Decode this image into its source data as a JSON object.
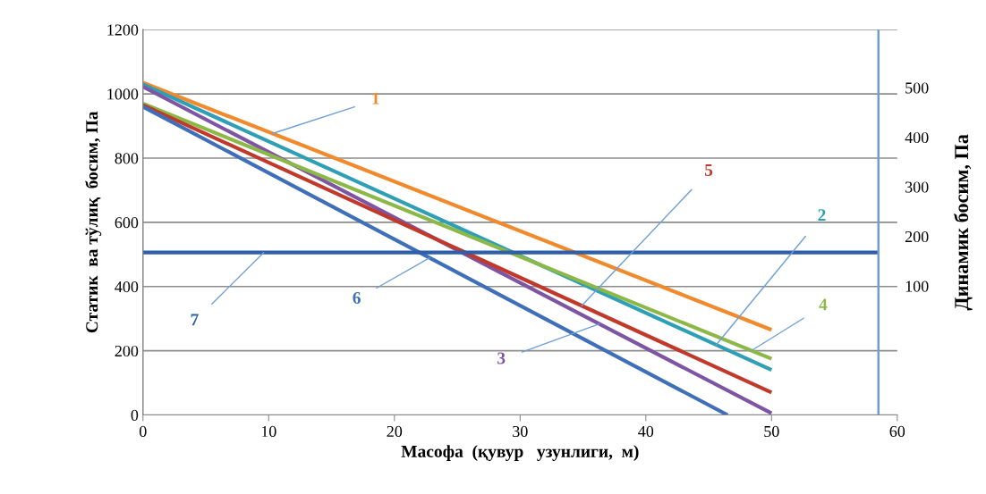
{
  "chart_data": {
    "type": "line",
    "xlabel": "Масофа  (қувур   узунлиги,  м)",
    "ylabel": "Статик  ва тўлиқ  босим, Па",
    "y2label": "Динамик босим, Па",
    "xlim": [
      0,
      60
    ],
    "xticks": [
      0,
      10,
      20,
      30,
      40,
      50,
      60
    ],
    "ylim": [
      0,
      1200
    ],
    "yticks": [
      0,
      200,
      400,
      600,
      800,
      1000,
      1200
    ],
    "y2lim": [
      -160,
      617
    ],
    "y2ticks": [
      100,
      200,
      300,
      400,
      500
    ],
    "grid": "y",
    "legend": false,
    "series": [
      {
        "name": "1",
        "color": "#f08a2c",
        "x": [
          0,
          50
        ],
        "values": [
          1035,
          265
        ]
      },
      {
        "name": "2",
        "color": "#2e9fb5",
        "x": [
          0,
          50
        ],
        "values": [
          1030,
          140
        ]
      },
      {
        "name": "3",
        "color": "#7e55a3",
        "x": [
          0,
          50
        ],
        "values": [
          1022,
          5
        ]
      },
      {
        "name": "4",
        "color": "#8cb848",
        "x": [
          0,
          50
        ],
        "values": [
          970,
          175
        ]
      },
      {
        "name": "5",
        "color": "#c0392b",
        "x": [
          0,
          50
        ],
        "values": [
          965,
          70
        ]
      },
      {
        "name": "6",
        "color": "#3f6fb8",
        "x": [
          0,
          46.5
        ],
        "values": [
          960,
          0
        ]
      },
      {
        "name": "7",
        "color": "#2e5fa8",
        "x": [
          0,
          58.5
        ],
        "values": [
          506,
          506
        ]
      },
      {
        "color": "#6f9fd5",
        "x": [
          58.5,
          58.5
        ],
        "values": [
          0,
          1200
        ]
      }
    ]
  }
}
